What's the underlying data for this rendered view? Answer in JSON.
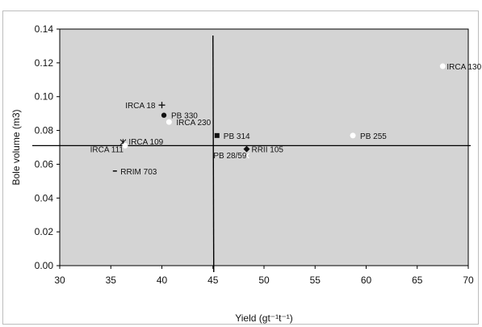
{
  "chart_data": {
    "type": "scatter",
    "xlabel": "Yield (gt⁻¹t⁻¹)",
    "ylabel": "Bole volume (m3)",
    "xlim": [
      30,
      70
    ],
    "ylim": [
      0,
      0.14
    ],
    "x_ticks": [
      "30",
      "35",
      "40",
      "45",
      "50",
      "55",
      "60",
      "65",
      "70"
    ],
    "y_ticks": [
      "0.00",
      "0.02",
      "0.04",
      "0.06",
      "0.08",
      "0.10",
      "0.12",
      "0.14"
    ],
    "grid": false,
    "reference_lines": {
      "x": 45.0,
      "y": 0.071
    },
    "points": [
      {
        "label": "IRCA 130",
        "x": 67.5,
        "y": 0.118,
        "marker": "circle-open"
      },
      {
        "label": "IRCA 18",
        "x": 40.0,
        "y": 0.095,
        "marker": "plus"
      },
      {
        "label": "PB 330",
        "x": 40.2,
        "y": 0.089,
        "marker": "circle-filled"
      },
      {
        "label": "IRCA 230",
        "x": 40.7,
        "y": 0.085,
        "marker": "circle-open"
      },
      {
        "label": "PB 314",
        "x": 45.4,
        "y": 0.077,
        "marker": "square-filled"
      },
      {
        "label": "PB 255",
        "x": 58.7,
        "y": 0.077,
        "marker": "circle-open"
      },
      {
        "label": "IRCA 109",
        "x": 36.2,
        "y": 0.073,
        "marker": "star"
      },
      {
        "label": "IRCA 111",
        "x": 36.4,
        "y": 0.071,
        "marker": "circle-open"
      },
      {
        "label": "RRII 105",
        "x": 48.3,
        "y": 0.069,
        "marker": "diamond-filled"
      },
      {
        "label": "PB 28/59",
        "x": 48.3,
        "y": 0.065,
        "marker": "cross"
      },
      {
        "label": "RRIM 703",
        "x": 35.4,
        "y": 0.056,
        "marker": "dash"
      }
    ]
  }
}
